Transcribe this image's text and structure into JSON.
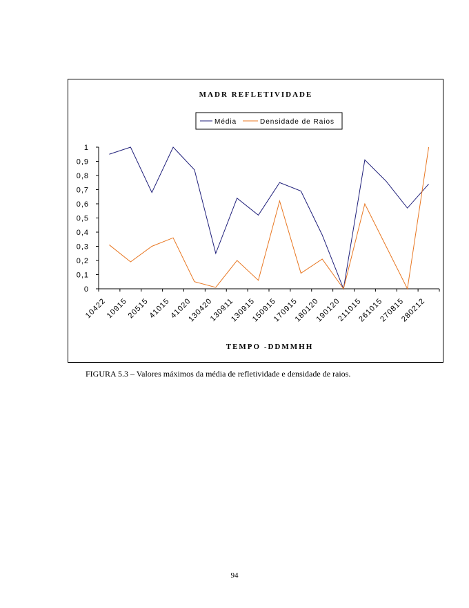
{
  "chart_data": {
    "type": "line",
    "title": "MADR REFLETIVIDADE",
    "xlabel": "TEMPO -DDMMHH",
    "ylabel": "",
    "ylim": [
      0,
      1
    ],
    "yticks": [
      "0",
      "0,1",
      "0,2",
      "0,3",
      "0,4",
      "0,5",
      "0,6",
      "0,7",
      "0,8",
      "0,9",
      "1"
    ],
    "grid": false,
    "legend": "top-center",
    "x_tick_labels": [
      "10422",
      "10915",
      "20515",
      "41015",
      "41020",
      "130420",
      "130911",
      "130915",
      "150915",
      "170915",
      "180120",
      "190120",
      "211015",
      "261015",
      "270815",
      "280212"
    ],
    "x": [
      "10422",
      "10915",
      "20515",
      "41015",
      "41020",
      "130420",
      "130911",
      "130915",
      "150915",
      "170915",
      "180120",
      "190120",
      "211015",
      "261015",
      "270815",
      "280212"
    ],
    "series": [
      {
        "name": "Média",
        "color": "#1f1f7a",
        "values": [
          0.95,
          1.0,
          0.68,
          1.0,
          0.84,
          0.25,
          0.64,
          0.52,
          0.75,
          0.69,
          0.38,
          0.0,
          0.91,
          0.76,
          0.57,
          0.74
        ]
      },
      {
        "name": "Densidade de Raios",
        "color": "#e87722",
        "values": [
          0.31,
          0.19,
          0.3,
          0.36,
          0.05,
          0.01,
          0.2,
          0.06,
          0.62,
          0.11,
          0.21,
          0.0,
          0.6,
          0.3,
          0.0,
          1.0
        ]
      }
    ]
  },
  "caption": "FIGURA 5.3 – Valores máximos da média de refletividade e densidade de raios.",
  "page_number": "94"
}
